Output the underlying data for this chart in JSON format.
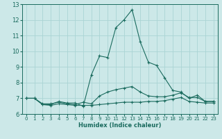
{
  "xlabel": "Humidex (Indice chaleur)",
  "xlim": [
    -0.5,
    23.5
  ],
  "ylim": [
    6,
    13
  ],
  "yticks": [
    6,
    7,
    8,
    9,
    10,
    11,
    12,
    13
  ],
  "xticks": [
    0,
    1,
    2,
    3,
    4,
    5,
    6,
    7,
    8,
    9,
    10,
    11,
    12,
    13,
    14,
    15,
    16,
    17,
    18,
    19,
    20,
    21,
    22,
    23
  ],
  "bg_color": "#cce8e8",
  "line_color": "#1a6b5e",
  "grid_color": "#aad4d4",
  "line1_x": [
    0,
    1,
    2,
    3,
    4,
    5,
    6,
    7,
    8,
    9,
    10,
    11,
    12,
    13,
    14,
    15,
    16,
    17,
    18,
    19,
    20,
    21,
    22,
    23
  ],
  "line1_y": [
    7.0,
    7.0,
    6.6,
    6.6,
    6.8,
    6.7,
    6.7,
    6.5,
    8.5,
    9.7,
    9.6,
    11.5,
    12.0,
    12.65,
    10.6,
    9.3,
    9.1,
    8.3,
    7.5,
    7.4,
    7.0,
    7.2,
    6.8,
    6.8
  ],
  "line2_x": [
    0,
    1,
    2,
    3,
    4,
    5,
    6,
    7,
    8,
    9,
    10,
    11,
    12,
    13,
    14,
    15,
    16,
    17,
    18,
    19,
    20,
    21,
    22,
    23
  ],
  "line2_y": [
    7.0,
    7.0,
    6.6,
    6.55,
    6.65,
    6.6,
    6.55,
    6.55,
    6.55,
    6.6,
    6.65,
    6.7,
    6.75,
    6.75,
    6.75,
    6.8,
    6.8,
    6.85,
    6.95,
    7.05,
    6.8,
    6.75,
    6.7,
    6.7
  ],
  "line3_x": [
    0,
    1,
    2,
    3,
    4,
    5,
    6,
    7,
    8,
    9,
    10,
    11,
    12,
    13,
    14,
    15,
    16,
    17,
    18,
    19,
    20,
    21,
    22,
    23
  ],
  "line3_y": [
    7.0,
    7.0,
    6.65,
    6.65,
    6.75,
    6.65,
    6.6,
    6.75,
    6.65,
    7.15,
    7.4,
    7.55,
    7.65,
    7.75,
    7.4,
    7.15,
    7.1,
    7.1,
    7.2,
    7.35,
    7.05,
    7.05,
    6.8,
    6.8
  ]
}
